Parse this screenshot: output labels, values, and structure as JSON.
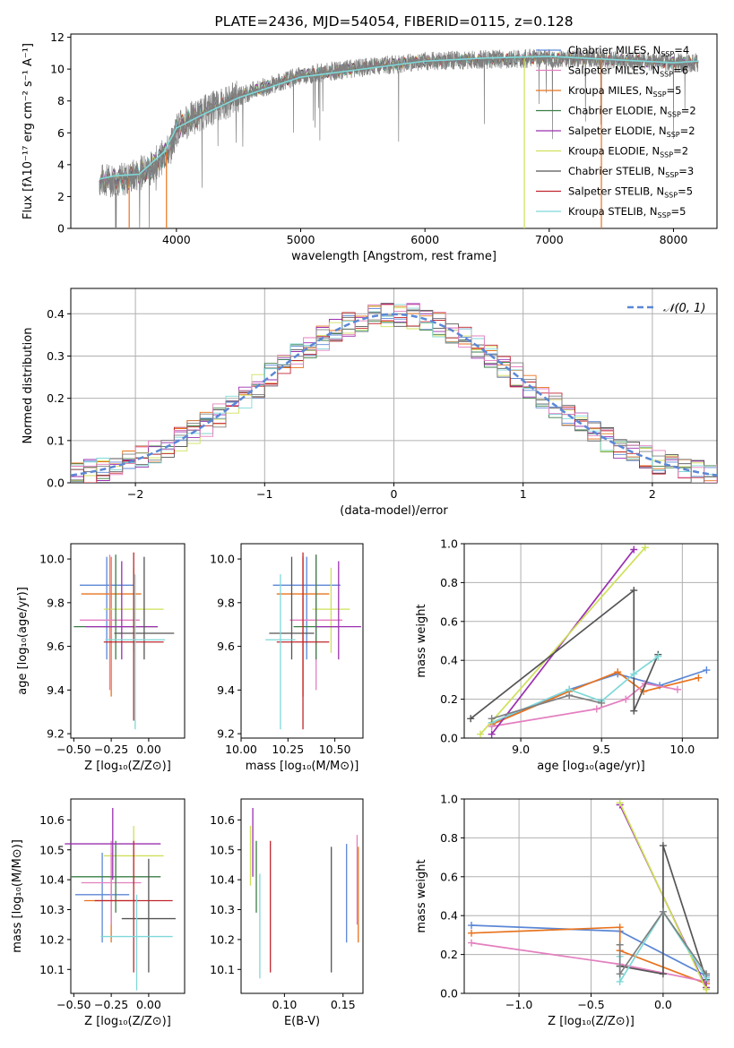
{
  "colors": {
    "chabrier_miles": "#5b87d6",
    "salpeter_miles": "#e8731e",
    "kroupa_miles": "#3f9e3f",
    "chabrier_elodie": "#3a7d44",
    "salpeter_elodie": "#9b30b0",
    "kroupa_elodie": "#cfe05a",
    "chabrier_stelib": "#555555",
    "salpeter_stelib": "#c0262d",
    "kroupa_stelib": "#7fd8d8",
    "pink": "#e37fbf",
    "grey": "#808080",
    "grid": "#b0b0b0"
  },
  "chart_data": [
    {
      "id": "spectrum",
      "type": "line",
      "title": "PLATE=2436, MJD=54054, FIBERID=0115, z=0.128",
      "xlabel": "wavelength [Angstrom, rest frame]",
      "ylabel": "Flux [fλ10⁻¹⁷ erg cm⁻² s⁻¹ A⁻¹]",
      "xlim": [
        3150,
        8350
      ],
      "ylim": [
        0,
        12.2
      ],
      "xticks": [
        4000,
        5000,
        6000,
        7000,
        8000
      ],
      "yticks": [
        0,
        2,
        4,
        6,
        8,
        10,
        12
      ],
      "grid": false,
      "legend_position": "right",
      "continuum": {
        "x": [
          3380,
          3600,
          3800,
          3950,
          4000,
          4100,
          4300,
          4600,
          5000,
          5500,
          6000,
          6500,
          7000,
          7500,
          8000,
          8200
        ],
        "y": [
          3.0,
          3.1,
          3.8,
          5.0,
          6.2,
          6.8,
          7.6,
          8.6,
          9.6,
          10.1,
          10.5,
          10.6,
          10.7,
          10.6,
          10.4,
          10.4
        ]
      },
      "legend": [
        {
          "label": "Chabrier MILES, N",
          "sub": "SSP",
          "suffix": "=4",
          "color_key": "chabrier_miles"
        },
        {
          "label": "Salpeter MILES, N",
          "sub": "SSP",
          "suffix": "=6",
          "color_key": "pink"
        },
        {
          "label": "Kroupa MILES, N",
          "sub": "SSP",
          "suffix": "=5",
          "color_key": "salpeter_miles"
        },
        {
          "label": "Chabrier ELODIE, N",
          "sub": "SSP",
          "suffix": "=2",
          "color_key": "chabrier_elodie"
        },
        {
          "label": "Salpeter ELODIE, N",
          "sub": "SSP",
          "suffix": "=2",
          "color_key": "salpeter_elodie"
        },
        {
          "label": "Kroupa ELODIE, N",
          "sub": "SSP",
          "suffix": "=2",
          "color_key": "kroupa_elodie"
        },
        {
          "label": "Chabrier STELIB, N",
          "sub": "SSP",
          "suffix": "=3",
          "color_key": "chabrier_stelib"
        },
        {
          "label": "Salpeter STELIB, N",
          "sub": "SSP",
          "suffix": "=5",
          "color_key": "salpeter_stelib"
        },
        {
          "label": "Kroupa STELIB, N",
          "sub": "SSP",
          "suffix": "=5",
          "color_key": "kroupa_stelib"
        }
      ]
    },
    {
      "id": "residuals",
      "type": "line",
      "xlabel": "(data-model)/error",
      "ylabel": "Normed distribution",
      "xlim": [
        -2.5,
        2.5
      ],
      "ylim": [
        0,
        0.46
      ],
      "xticks": [
        -2,
        -1,
        0,
        1,
        2
      ],
      "xticklabels": [
        "−2",
        "−1",
        "0",
        "1",
        "2"
      ],
      "yticks": [
        0.0,
        0.1,
        0.2,
        0.3,
        0.4
      ],
      "yticklabels": [
        "0.0",
        "0.1",
        "0.2",
        "0.3",
        "0.4"
      ],
      "grid": true,
      "legend_label": "𝒩(0, 1)",
      "legend_position": "top-right",
      "bin_width": 0.1
    },
    {
      "id": "age_vs_Z",
      "type": "scatter",
      "xlabel": "Z [log₁₀(Z/Z⊙)]",
      "ylabel": "age  [log₁₀(age/yr)]",
      "xlim": [
        -0.52,
        0.24
      ],
      "ylim": [
        9.18,
        10.07
      ],
      "xticks": [
        -0.5,
        -0.25,
        0.0
      ],
      "xticklabels": [
        "−0.50",
        "−0.25",
        "0.00"
      ],
      "yticks": [
        9.2,
        9.4,
        9.6,
        9.8,
        10.0
      ],
      "yticklabels": [
        "9.2",
        "9.4",
        "9.6",
        "9.8",
        "10.0"
      ],
      "points": [
        {
          "color_key": "chabrier_miles",
          "x": -0.28,
          "xerr": 0.18,
          "y": 9.88,
          "yerr_lo": 0.34,
          "yerr_hi": 0.13
        },
        {
          "color_key": "salpeter_miles",
          "x": -0.25,
          "xerr": 0.2,
          "y": 9.84,
          "yerr_lo": 0.47,
          "yerr_hi": 0.17
        },
        {
          "color_key": "kroupa_elodie",
          "x": -0.1,
          "xerr": 0.2,
          "y": 9.77,
          "yerr_lo": 0.2,
          "yerr_hi": 0.19
        },
        {
          "color_key": "pink",
          "x": -0.26,
          "xerr": 0.2,
          "y": 9.72,
          "yerr_lo": 0.32,
          "yerr_hi": 0.3
        },
        {
          "color_key": "chabrier_elodie",
          "x": -0.22,
          "xerr": 0.28,
          "y": 9.69,
          "yerr_lo": 0.15,
          "yerr_hi": 0.33
        },
        {
          "color_key": "salpeter_elodie",
          "x": -0.18,
          "xerr": 0.24,
          "y": 9.69,
          "yerr_lo": 0.15,
          "yerr_hi": 0.3
        },
        {
          "color_key": "chabrier_stelib",
          "x": -0.03,
          "xerr": 0.2,
          "y": 9.66,
          "yerr_lo": 0.12,
          "yerr_hi": 0.35
        },
        {
          "color_key": "salpeter_stelib",
          "x": -0.1,
          "xerr": 0.2,
          "y": 9.62,
          "yerr_lo": 0.36,
          "yerr_hi": 0.41
        },
        {
          "color_key": "kroupa_stelib",
          "x": -0.09,
          "xerr": 0.2,
          "y": 9.63,
          "yerr_lo": 0.41,
          "yerr_hi": 0.3
        }
      ]
    },
    {
      "id": "age_vs_mass",
      "type": "scatter",
      "xlabel": "mass [log₁₀(M/M⊙)]",
      "ylabel": "",
      "xlim": [
        10.0,
        10.65
      ],
      "ylim": [
        9.18,
        10.07
      ],
      "xticks": [
        10.0,
        10.25,
        10.5
      ],
      "xticklabels": [
        "10.00",
        "10.25",
        "10.50"
      ],
      "yticks": [
        9.2,
        9.4,
        9.6,
        9.8,
        10.0
      ],
      "yticklabels": [
        "9.2",
        "9.4",
        "9.6",
        "9.8",
        "10.0"
      ],
      "points": [
        {
          "color_key": "chabrier_miles",
          "x": 10.35,
          "xerr": 0.18,
          "y": 9.88,
          "yerr_lo": 0.34,
          "yerr_hi": 0.13
        },
        {
          "color_key": "salpeter_miles",
          "x": 10.33,
          "xerr": 0.14,
          "y": 9.84,
          "yerr_lo": 0.47,
          "yerr_hi": 0.17
        },
        {
          "color_key": "kroupa_elodie",
          "x": 10.48,
          "xerr": 0.1,
          "y": 9.77,
          "yerr_lo": 0.2,
          "yerr_hi": 0.19
        },
        {
          "color_key": "pink",
          "x": 10.4,
          "xerr": 0.14,
          "y": 9.72,
          "yerr_lo": 0.32,
          "yerr_hi": 0.3
        },
        {
          "color_key": "chabrier_elodie",
          "x": 10.4,
          "xerr": 0.12,
          "y": 9.69,
          "yerr_lo": 0.15,
          "yerr_hi": 0.33
        },
        {
          "color_key": "salpeter_elodie",
          "x": 10.52,
          "xerr": 0.12,
          "y": 9.69,
          "yerr_lo": 0.15,
          "yerr_hi": 0.3
        },
        {
          "color_key": "chabrier_stelib",
          "x": 10.27,
          "xerr": 0.12,
          "y": 9.66,
          "yerr_lo": 0.12,
          "yerr_hi": 0.35
        },
        {
          "color_key": "salpeter_stelib",
          "x": 10.33,
          "xerr": 0.14,
          "y": 9.62,
          "yerr_lo": 0.4,
          "yerr_hi": 0.41
        },
        {
          "color_key": "kroupa_stelib",
          "x": 10.21,
          "xerr": 0.08,
          "y": 9.63,
          "yerr_lo": 0.41,
          "yerr_hi": 0.3
        }
      ]
    },
    {
      "id": "weight_vs_age",
      "type": "line",
      "xlabel": "age  [log₁₀(age/yr)]",
      "ylabel": "mass weight",
      "xlim": [
        8.65,
        10.22
      ],
      "ylim": [
        0,
        1.0
      ],
      "xticks": [
        9.0,
        9.5,
        10.0
      ],
      "xticklabels": [
        "9.0",
        "9.5",
        "10.0"
      ],
      "yticks": [
        0.0,
        0.2,
        0.4,
        0.6,
        0.8,
        1.0
      ],
      "yticklabels": [
        "0.0",
        "0.2",
        "0.4",
        "0.6",
        "0.8",
        "1.0"
      ],
      "grid": true,
      "series": [
        {
          "color_key": "chabrier_miles",
          "x": [
            8.82,
            9.3,
            9.6,
            9.86,
            10.15
          ],
          "y": [
            0.07,
            0.25,
            0.33,
            0.27,
            0.35
          ]
        },
        {
          "color_key": "salpeter_miles",
          "x": [
            8.82,
            9.3,
            9.6,
            9.76,
            10.1
          ],
          "y": [
            0.07,
            0.24,
            0.34,
            0.24,
            0.31
          ]
        },
        {
          "color_key": "pink",
          "x": [
            8.82,
            9.47,
            9.65,
            9.77,
            9.97
          ],
          "y": [
            0.06,
            0.15,
            0.2,
            0.28,
            0.25
          ]
        },
        {
          "color_key": "salpeter_elodie",
          "x": [
            8.82,
            9.7
          ],
          "y": [
            0.02,
            0.97
          ]
        },
        {
          "color_key": "kroupa_elodie",
          "x": [
            8.75,
            9.77
          ],
          "y": [
            0.02,
            0.98
          ]
        },
        {
          "color_key": "chabrier_stelib",
          "x": [
            8.69,
            9.7,
            9.7,
            9.85
          ],
          "y": [
            0.1,
            0.76,
            0.14,
            0.43
          ]
        },
        {
          "color_key": "kroupa_stelib",
          "x": [
            8.82,
            9.3,
            9.5,
            9.7,
            9.85
          ],
          "y": [
            0.08,
            0.25,
            0.19,
            0.33,
            0.42
          ]
        },
        {
          "color_key": "grey",
          "x": [
            8.82,
            9.3,
            9.5
          ],
          "y": [
            0.1,
            0.22,
            0.18
          ]
        }
      ]
    },
    {
      "id": "mass_vs_Z",
      "type": "scatter",
      "xlabel": "Z [log₁₀(Z/Z⊙)]",
      "ylabel": "mass [log₁₀(M/M⊙)]",
      "xlim": [
        -0.52,
        0.24
      ],
      "ylim": [
        10.02,
        10.67
      ],
      "xticks": [
        -0.5,
        -0.25,
        0.0
      ],
      "xticklabels": [
        "−0.50",
        "−0.25",
        "0.00"
      ],
      "yticks": [
        10.1,
        10.2,
        10.3,
        10.4,
        10.5,
        10.6
      ],
      "yticklabels": [
        "10.1",
        "10.2",
        "10.3",
        "10.4",
        "10.5",
        "10.6"
      ],
      "points": [
        {
          "color_key": "chabrier_miles",
          "x": -0.31,
          "xerr": 0.18,
          "y": 10.35,
          "yerr_lo": 0.16,
          "yerr_hi": 0.14
        },
        {
          "color_key": "salpeter_miles",
          "x": -0.25,
          "xerr": 0.18,
          "y": 10.33,
          "yerr_lo": 0.14,
          "yerr_hi": 0.16
        },
        {
          "color_key": "kroupa_elodie",
          "x": -0.1,
          "xerr": 0.2,
          "y": 10.48,
          "yerr_lo": 0.1,
          "yerr_hi": 0.1
        },
        {
          "color_key": "pink",
          "x": -0.25,
          "xerr": 0.2,
          "y": 10.39,
          "yerr_lo": 0.14,
          "yerr_hi": 0.14
        },
        {
          "color_key": "chabrier_elodie",
          "x": -0.22,
          "xerr": 0.3,
          "y": 10.41,
          "yerr_lo": 0.12,
          "yerr_hi": 0.12
        },
        {
          "color_key": "salpeter_elodie",
          "x": -0.24,
          "xerr": 0.32,
          "y": 10.52,
          "yerr_lo": 0.12,
          "yerr_hi": 0.12
        },
        {
          "color_key": "chabrier_stelib",
          "x": 0.0,
          "xerr": 0.18,
          "y": 10.27,
          "yerr_lo": 0.18,
          "yerr_hi": 0.2
        },
        {
          "color_key": "salpeter_stelib",
          "x": -0.1,
          "xerr": 0.26,
          "y": 10.33,
          "yerr_lo": 0.24,
          "yerr_hi": 0.2
        },
        {
          "color_key": "kroupa_stelib",
          "x": -0.08,
          "xerr": 0.24,
          "y": 10.21,
          "yerr_lo": 0.18,
          "yerr_hi": 0.14
        }
      ]
    },
    {
      "id": "mass_vs_ebv",
      "type": "scatter",
      "xlabel": "E(B-V)",
      "ylabel": "",
      "xlim": [
        0.063,
        0.167
      ],
      "ylim": [
        10.02,
        10.67
      ],
      "xticks": [
        0.1,
        0.15
      ],
      "xticklabels": [
        "0.10",
        "0.15"
      ],
      "yticks": [
        10.1,
        10.2,
        10.3,
        10.4,
        10.5,
        10.6
      ],
      "yticklabels": [
        "10.1",
        "10.2",
        "10.3",
        "10.4",
        "10.5",
        "10.6"
      ],
      "points": [
        {
          "color_key": "salpeter_elodie",
          "x": 0.073,
          "y_lo": 10.41,
          "y_hi": 10.64
        },
        {
          "color_key": "kroupa_elodie",
          "x": 0.071,
          "y_lo": 10.38,
          "y_hi": 10.58
        },
        {
          "color_key": "chabrier_elodie",
          "x": 0.076,
          "y_lo": 10.29,
          "y_hi": 10.53
        },
        {
          "color_key": "kroupa_stelib",
          "x": 0.079,
          "y_lo": 10.07,
          "y_hi": 10.42
        },
        {
          "color_key": "salpeter_stelib",
          "x": 0.088,
          "y_lo": 10.09,
          "y_hi": 10.53
        },
        {
          "color_key": "chabrier_stelib",
          "x": 0.14,
          "y_lo": 10.09,
          "y_hi": 10.51
        },
        {
          "color_key": "chabrier_miles",
          "x": 0.153,
          "y_lo": 10.19,
          "y_hi": 10.52
        },
        {
          "color_key": "salpeter_miles",
          "x": 0.163,
          "y_lo": 10.19,
          "y_hi": 10.51
        },
        {
          "color_key": "pink",
          "x": 0.162,
          "y_lo": 10.25,
          "y_hi": 10.55
        }
      ]
    },
    {
      "id": "weight_vs_Z",
      "type": "line",
      "xlabel": "Z [log₁₀(Z/Z⊙)]",
      "ylabel": "mass weight",
      "xlim": [
        -1.38,
        0.38
      ],
      "ylim": [
        0,
        1.0
      ],
      "xticks": [
        -1.0,
        -0.5,
        0.0
      ],
      "xticklabels": [
        "−1.0",
        "−0.5",
        "0.0"
      ],
      "yticks": [
        0.0,
        0.2,
        0.4,
        0.6,
        0.8,
        1.0
      ],
      "yticklabels": [
        "0.0",
        "0.2",
        "0.4",
        "0.6",
        "0.8",
        "1.0"
      ],
      "grid": true,
      "series": [
        {
          "color_key": "chabrier_miles",
          "x": [
            -1.33,
            -0.3,
            0.3
          ],
          "y": [
            0.35,
            0.32,
            0.09
          ]
        },
        {
          "color_key": "salpeter_miles",
          "x": [
            -1.33,
            -0.3,
            -0.3,
            0.3
          ],
          "y": [
            0.31,
            0.34,
            0.22,
            0.05
          ]
        },
        {
          "color_key": "pink",
          "x": [
            -1.33,
            -0.3,
            0.3
          ],
          "y": [
            0.26,
            0.15,
            0.06
          ]
        },
        {
          "color_key": "salpeter_elodie",
          "x": [
            -0.3,
            0.3
          ],
          "y": [
            0.97,
            0.03
          ]
        },
        {
          "color_key": "kroupa_elodie",
          "x": [
            -0.3,
            0.3
          ],
          "y": [
            0.98,
            0.02
          ]
        },
        {
          "color_key": "chabrier_stelib",
          "x": [
            -0.3,
            0.0,
            0.0,
            0.3
          ],
          "y": [
            0.14,
            0.1,
            0.76,
            0.07
          ]
        },
        {
          "color_key": "kroupa_stelib",
          "x": [
            -0.3,
            -0.3,
            0.0,
            0.3
          ],
          "y": [
            0.19,
            0.06,
            0.42,
            0.08
          ]
        },
        {
          "color_key": "grey",
          "x": [
            -0.3,
            -0.3,
            0.0,
            0.3
          ],
          "y": [
            0.25,
            0.1,
            0.42,
            0.1
          ]
        }
      ]
    }
  ]
}
